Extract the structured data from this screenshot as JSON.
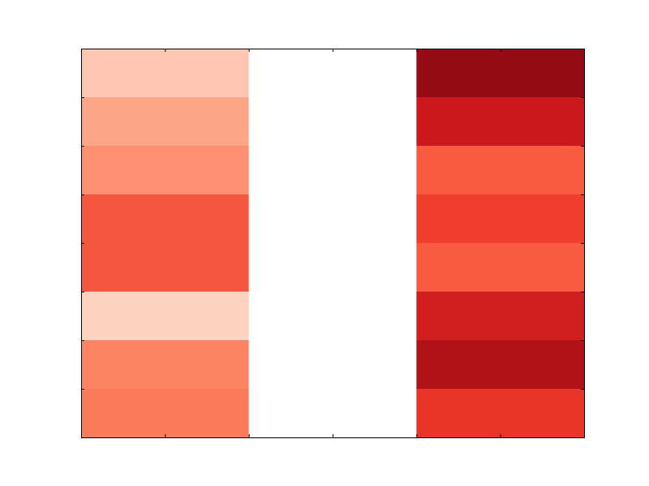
{
  "chart_data": {
    "type": "heatmap",
    "title": "",
    "xlabel": "",
    "ylabel": "",
    "grid": false,
    "legend": "none",
    "colormap": "Reds",
    "n_columns": 3,
    "n_rows": 8,
    "columns": [
      {
        "index": 0,
        "cell_colors": [
          "#fdc6b0",
          "#fca689",
          "#fc9070",
          "#f6573f",
          "#f6573f",
          "#fdd2bf",
          "#fc8464",
          "#fb7b5b"
        ]
      },
      {
        "index": 1,
        "cell_colors": [
          "#ffffff",
          "#ffffff",
          "#ffffff",
          "#ffffff",
          "#ffffff",
          "#ffffff",
          "#ffffff",
          "#ffffff"
        ]
      },
      {
        "index": 2,
        "cell_colors": [
          "#940b13",
          "#ca181d",
          "#f75c41",
          "#f03f2e",
          "#f75c41",
          "#d11e1f",
          "#b01217",
          "#e83429"
        ]
      }
    ],
    "x_ticks_per_column": 2,
    "y_ticks": 8
  }
}
